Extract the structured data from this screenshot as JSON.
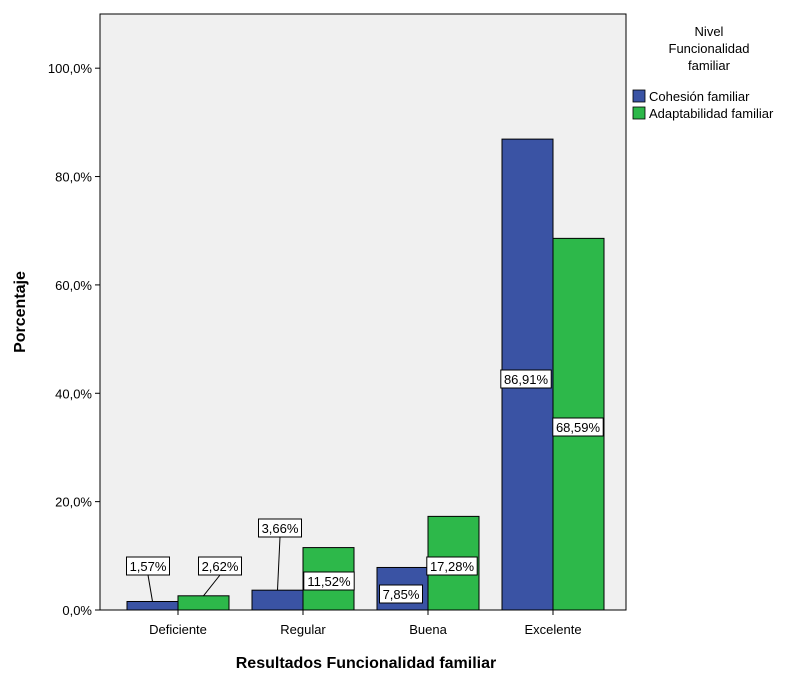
{
  "chart_data": {
    "type": "bar",
    "categories": [
      "Deficiente",
      "Regular",
      "Buena",
      "Excelente"
    ],
    "series": [
      {
        "name": "Cohesión familiar",
        "color": "#3a53a4",
        "values": [
          1.57,
          3.66,
          7.85,
          86.91
        ],
        "labels": [
          "1,57%",
          "3,66%",
          "7,85%",
          "86,91%"
        ]
      },
      {
        "name": "Adaptabilidad familiar",
        "color": "#2db84a",
        "values": [
          2.62,
          11.52,
          17.28,
          68.59
        ],
        "labels": [
          "2,62%",
          "11,52%",
          "17,28%",
          "68,59%"
        ]
      }
    ],
    "xlabel": "Resultados Funcionalidad familiar",
    "ylabel": "Porcentaje",
    "ylim": [
      0,
      100
    ],
    "yticks": [
      0,
      20,
      40,
      60,
      80,
      100
    ],
    "ytick_labels": [
      "0,0%",
      "20,0%",
      "40,0%",
      "60,0%",
      "80,0%",
      "100,0%"
    ],
    "legend": {
      "title_lines": [
        "Nivel",
        "Funcionalidad",
        "familiar"
      ],
      "placement": "top-right"
    },
    "plot_background": "#f0f0f0",
    "grid": false
  }
}
